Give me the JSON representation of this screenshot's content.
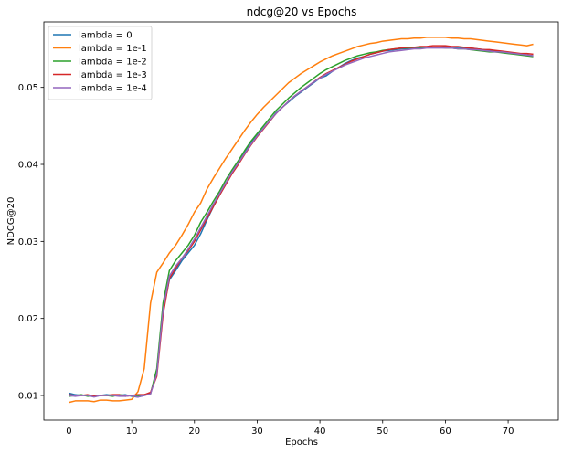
{
  "chart_data": {
    "type": "line",
    "title": "ndcg@20 vs Epochs",
    "xlabel": "Epochs",
    "ylabel": "NDCG@20",
    "xlim": [
      -4,
      78
    ],
    "ylim": [
      0.0068,
      0.0585
    ],
    "xticks": [
      0,
      10,
      20,
      30,
      40,
      50,
      60,
      70
    ],
    "yticks": [
      0.01,
      0.02,
      0.03,
      0.04,
      0.05
    ],
    "ytick_labels": [
      "0.01",
      "0.02",
      "0.03",
      "0.04",
      "0.05"
    ],
    "grid": false,
    "legend_position": "top-left",
    "x": [
      0,
      1,
      2,
      3,
      4,
      5,
      6,
      7,
      8,
      9,
      10,
      11,
      12,
      13,
      14,
      15,
      16,
      17,
      18,
      19,
      20,
      21,
      22,
      23,
      24,
      25,
      26,
      27,
      28,
      29,
      30,
      31,
      32,
      33,
      34,
      35,
      36,
      37,
      38,
      39,
      40,
      41,
      42,
      43,
      44,
      45,
      46,
      47,
      48,
      49,
      50,
      51,
      52,
      53,
      54,
      55,
      56,
      57,
      58,
      59,
      60,
      61,
      62,
      63,
      64,
      65,
      66,
      67,
      68,
      69,
      70,
      71,
      72,
      73,
      74
    ],
    "series": [
      {
        "name": "lambda = 0",
        "color": "#1f77b4",
        "values": [
          0.0103,
          0.0101,
          0.01,
          0.01,
          0.0099,
          0.01,
          0.0101,
          0.01,
          0.01,
          0.0101,
          0.0099,
          0.0098,
          0.01,
          0.0103,
          0.013,
          0.021,
          0.025,
          0.0262,
          0.0275,
          0.0285,
          0.0295,
          0.031,
          0.0328,
          0.0345,
          0.036,
          0.0375,
          0.039,
          0.0402,
          0.0415,
          0.0428,
          0.0438,
          0.0447,
          0.0456,
          0.0467,
          0.0474,
          0.0481,
          0.0488,
          0.0494,
          0.05,
          0.0506,
          0.0512,
          0.0515,
          0.0521,
          0.0526,
          0.0531,
          0.0535,
          0.0538,
          0.054,
          0.0543,
          0.0545,
          0.0547,
          0.0548,
          0.0549,
          0.055,
          0.055,
          0.0551,
          0.0551,
          0.0552,
          0.0552,
          0.0552,
          0.0553,
          0.0552,
          0.0552,
          0.0551,
          0.0551,
          0.055,
          0.0549,
          0.0548,
          0.0547,
          0.0546,
          0.0545,
          0.0544,
          0.0543,
          0.0542,
          0.0541
        ]
      },
      {
        "name": "lambda = 1e-1",
        "color": "#ff7f0e",
        "values": [
          0.0091,
          0.0093,
          0.0093,
          0.0093,
          0.0092,
          0.0094,
          0.0094,
          0.0093,
          0.0093,
          0.0094,
          0.0095,
          0.0105,
          0.0135,
          0.022,
          0.026,
          0.0272,
          0.0285,
          0.0295,
          0.0308,
          0.0322,
          0.0338,
          0.035,
          0.0368,
          0.0382,
          0.0395,
          0.0408,
          0.042,
          0.0432,
          0.0444,
          0.0455,
          0.0465,
          0.0474,
          0.0482,
          0.049,
          0.0498,
          0.0506,
          0.0512,
          0.0518,
          0.0523,
          0.0528,
          0.0533,
          0.0537,
          0.0541,
          0.0544,
          0.0547,
          0.055,
          0.0553,
          0.0555,
          0.0557,
          0.0558,
          0.056,
          0.0561,
          0.0562,
          0.0563,
          0.0563,
          0.0564,
          0.0564,
          0.0565,
          0.0565,
          0.0565,
          0.0565,
          0.0564,
          0.0564,
          0.0563,
          0.0563,
          0.0562,
          0.0561,
          0.056,
          0.0559,
          0.0558,
          0.0557,
          0.0556,
          0.0555,
          0.0554,
          0.0556
        ]
      },
      {
        "name": "lambda = 1e-2",
        "color": "#2ca02c",
        "values": [
          0.0099,
          0.01,
          0.0101,
          0.0099,
          0.01,
          0.01,
          0.01,
          0.0099,
          0.0101,
          0.01,
          0.01,
          0.0099,
          0.0101,
          0.0102,
          0.0135,
          0.022,
          0.0262,
          0.0275,
          0.0285,
          0.0295,
          0.0308,
          0.0325,
          0.0338,
          0.0352,
          0.0365,
          0.038,
          0.0393,
          0.0405,
          0.0418,
          0.043,
          0.044,
          0.045,
          0.046,
          0.047,
          0.0478,
          0.0486,
          0.0493,
          0.05,
          0.0506,
          0.0512,
          0.0518,
          0.0523,
          0.0527,
          0.0531,
          0.0535,
          0.0538,
          0.0541,
          0.0543,
          0.0545,
          0.0546,
          0.0548,
          0.0549,
          0.055,
          0.0551,
          0.0551,
          0.0552,
          0.0552,
          0.0552,
          0.0552,
          0.0552,
          0.0551,
          0.0551,
          0.055,
          0.055,
          0.0549,
          0.0548,
          0.0547,
          0.0546,
          0.0546,
          0.0545,
          0.0544,
          0.0543,
          0.0542,
          0.0541,
          0.054
        ]
      },
      {
        "name": "lambda = 1e-3",
        "color": "#d62728",
        "values": [
          0.0101,
          0.01,
          0.01,
          0.0101,
          0.0099,
          0.01,
          0.01,
          0.0101,
          0.0101,
          0.0099,
          0.01,
          0.0101,
          0.0101,
          0.0104,
          0.0125,
          0.0205,
          0.0252,
          0.0265,
          0.0278,
          0.0288,
          0.03,
          0.0315,
          0.033,
          0.0345,
          0.036,
          0.0374,
          0.0388,
          0.04,
          0.0413,
          0.0425,
          0.0436,
          0.0446,
          0.0456,
          0.0466,
          0.0474,
          0.0482,
          0.0489,
          0.0495,
          0.0501,
          0.0507,
          0.0513,
          0.0518,
          0.0522,
          0.0526,
          0.053,
          0.0534,
          0.0537,
          0.054,
          0.0543,
          0.0545,
          0.0547,
          0.0549,
          0.055,
          0.0551,
          0.0552,
          0.0552,
          0.0553,
          0.0553,
          0.0554,
          0.0554,
          0.0554,
          0.0553,
          0.0553,
          0.0552,
          0.0551,
          0.055,
          0.0549,
          0.0549,
          0.0548,
          0.0547,
          0.0546,
          0.0545,
          0.0544,
          0.0544,
          0.0543
        ]
      },
      {
        "name": "lambda = 1e-4",
        "color": "#9467bd",
        "values": [
          0.01,
          0.0099,
          0.01,
          0.01,
          0.0098,
          0.01,
          0.01,
          0.01,
          0.0099,
          0.0099,
          0.01,
          0.0098,
          0.01,
          0.0102,
          0.0128,
          0.0212,
          0.0255,
          0.0268,
          0.0278,
          0.029,
          0.0303,
          0.0318,
          0.0333,
          0.0348,
          0.0362,
          0.0376,
          0.039,
          0.0402,
          0.0414,
          0.0426,
          0.0437,
          0.0447,
          0.0457,
          0.0466,
          0.0474,
          0.0482,
          0.0489,
          0.0495,
          0.0501,
          0.0507,
          0.0512,
          0.0517,
          0.0521,
          0.0525,
          0.0529,
          0.0532,
          0.0535,
          0.0538,
          0.054,
          0.0542,
          0.0544,
          0.0546,
          0.0547,
          0.0548,
          0.0549,
          0.055,
          0.055,
          0.0551,
          0.0551,
          0.0551,
          0.0551,
          0.0551,
          0.055,
          0.055,
          0.0549,
          0.0549,
          0.0548,
          0.0547,
          0.0546,
          0.0546,
          0.0545,
          0.0544,
          0.0543,
          0.0542,
          0.0541
        ]
      }
    ]
  }
}
